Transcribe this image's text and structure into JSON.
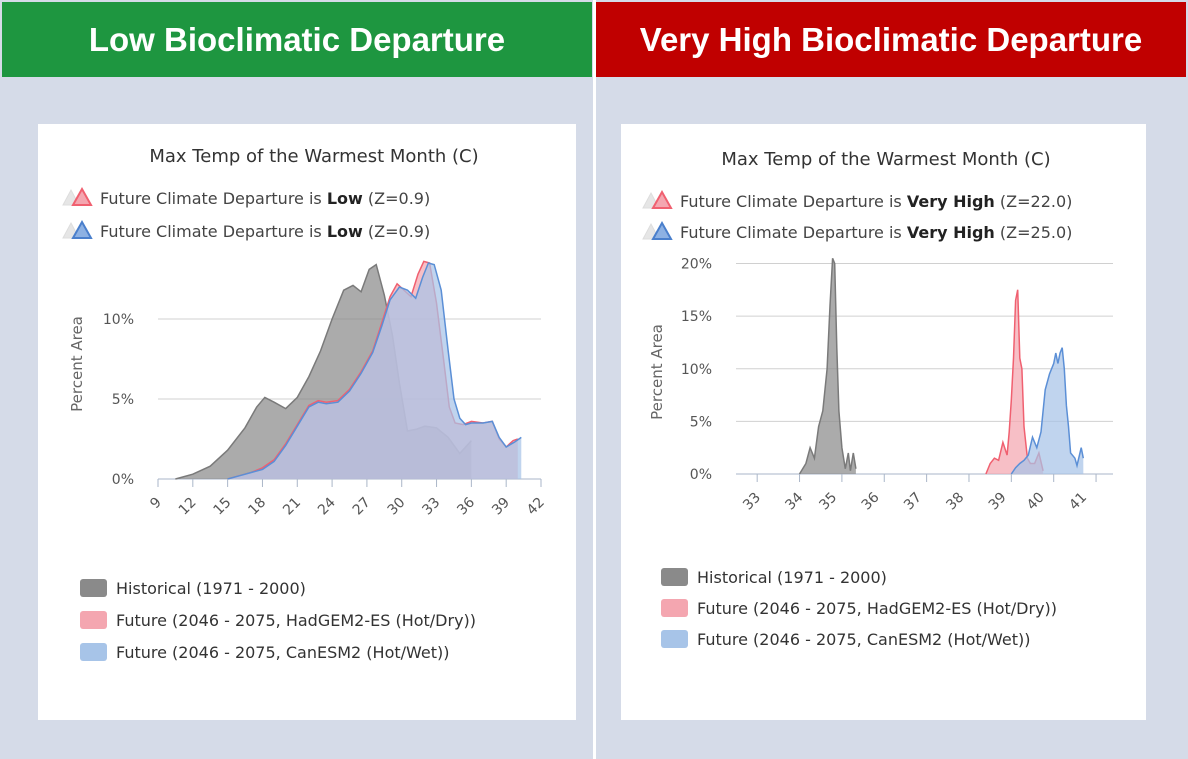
{
  "colors": {
    "low_header": "#1e9640",
    "high_header": "#c00000",
    "historical_fill": "#8a8a8a",
    "hadgem_fill": "#f4a6b0",
    "canesm_fill": "#a7c4e8",
    "hadgem_line": "#f06070",
    "canesm_line": "#5b8fd6",
    "grid": "#d0d0d0",
    "axis_text": "#555555"
  },
  "left": {
    "header": "Low Bioclimatic Departure",
    "header_icon": "none",
    "chart_data": {
      "type": "area",
      "title": "Max Temp of the Warmest Month (C)",
      "ylabel": "Percent Area",
      "xlabel": "",
      "xlim": [
        9,
        42
      ],
      "ylim": [
        0,
        14
      ],
      "grid": true,
      "x_ticks": [
        9,
        12,
        15,
        18,
        21,
        24,
        27,
        30,
        33,
        36,
        39,
        42
      ],
      "x_tick_labels": [
        "9",
        "12",
        "15",
        "18",
        "21",
        "24",
        "27",
        "30",
        "33",
        "36",
        "39",
        "42"
      ],
      "y_ticks": [
        0,
        5,
        10
      ],
      "y_tick_labels": [
        "0%",
        "5%",
        "10%"
      ],
      "departures": [
        {
          "prefix": "Future Climate Departure is ",
          "level": "Low",
          "suffix": " (Z=0.9)",
          "marker_color": "#f06070",
          "marker_fill": "#f4a6b0"
        },
        {
          "prefix": "Future Climate Departure is ",
          "level": "Low",
          "suffix": " (Z=0.9)",
          "marker_color": "#4a7fcc",
          "marker_fill": "#8db1e3"
        }
      ],
      "legend_position": "bottom-left",
      "legend": [
        {
          "label": "Historical (1971 - 2000)",
          "color": "#8a8a8a"
        },
        {
          "label": "Future (2046 - 2075, HadGEM2-ES (Hot/Dry))",
          "color": "#f4a6b0"
        },
        {
          "label": "Future (2046 - 2075, CanESM2 (Hot/Wet))",
          "color": "#a7c4e8"
        }
      ],
      "series": [
        {
          "key": "historical",
          "fill": "#8a8a8a",
          "line": "#7a7a7a",
          "x": [
            10.5,
            12,
            13.5,
            15,
            16.5,
            17.5,
            18.2,
            19,
            20,
            21,
            22,
            23,
            24,
            25,
            25.8,
            26.5,
            27.2,
            27.8,
            28.5,
            29.2,
            29.8,
            30.5,
            31.2,
            32,
            33,
            34,
            35,
            36
          ],
          "y": [
            0,
            0.3,
            0.8,
            1.8,
            3.2,
            4.5,
            5.1,
            4.8,
            4.4,
            5.1,
            6.4,
            8.0,
            10.0,
            11.8,
            12.1,
            11.7,
            13.1,
            13.4,
            11.5,
            9.0,
            6.0,
            3.0,
            3.1,
            3.3,
            3.2,
            2.6,
            1.6,
            2.4
          ]
        },
        {
          "key": "hadgem",
          "fill": "#f4a6b0",
          "line": "#f06070",
          "x": [
            15,
            16,
            17,
            18,
            19,
            20,
            21,
            22,
            22.8,
            23.5,
            24.5,
            25.5,
            26.5,
            27.5,
            28.3,
            29,
            29.6,
            30.2,
            30.8,
            31.4,
            31.9,
            32.4,
            33,
            33.6,
            34.1,
            34.6,
            35.3,
            36,
            37,
            37.8,
            38.4,
            39,
            39.6,
            40
          ],
          "y": [
            0,
            0.2,
            0.4,
            0.7,
            1.2,
            2.2,
            3.4,
            4.6,
            4.9,
            4.8,
            4.9,
            5.6,
            6.7,
            8.0,
            9.8,
            11.4,
            12.2,
            11.8,
            11.4,
            12.8,
            13.6,
            13.5,
            11.0,
            7.5,
            4.5,
            3.5,
            3.4,
            3.6,
            3.5,
            3.6,
            2.5,
            2.0,
            2.4,
            2.5
          ]
        },
        {
          "key": "canesm",
          "fill": "#a7c4e8",
          "line": "#5b8fd6",
          "x": [
            15,
            16,
            17,
            18,
            19,
            20,
            21,
            22,
            22.8,
            23.5,
            24.5,
            25.5,
            26.5,
            27.5,
            28.3,
            29,
            29.8,
            30.5,
            31.2,
            31.8,
            32.3,
            32.8,
            33.4,
            34,
            34.5,
            35,
            35.5,
            36,
            37,
            37.8,
            38.4,
            39,
            39.7,
            40.3
          ],
          "y": [
            0,
            0.2,
            0.4,
            0.6,
            1.1,
            2.1,
            3.3,
            4.5,
            4.8,
            4.7,
            4.8,
            5.5,
            6.6,
            7.9,
            9.6,
            11.2,
            12.0,
            11.8,
            11.3,
            12.6,
            13.5,
            13.4,
            11.8,
            8.0,
            5.0,
            3.8,
            3.4,
            3.5,
            3.5,
            3.6,
            2.6,
            2.0,
            2.3,
            2.6
          ]
        }
      ]
    }
  },
  "right": {
    "header": "Very High Bioclimatic Departure",
    "chart_data": {
      "type": "area",
      "title": "Max Temp of the Warmest Month (C)",
      "ylabel": "Percent Area",
      "xlabel": "",
      "xlim": [
        32.5,
        41.4
      ],
      "ylim": [
        0,
        21
      ],
      "grid": true,
      "x_ticks": [
        33,
        34,
        35,
        36,
        37,
        38,
        39,
        40,
        41
      ],
      "x_tick_labels": [
        "33",
        "34",
        "35",
        "36",
        "37",
        "38",
        "39",
        "40",
        "41"
      ],
      "x_tick_positions": [
        33,
        34,
        35,
        36,
        37,
        38,
        39,
        40,
        41
      ],
      "x_label_positions": [
        33,
        34,
        34.8,
        35.8,
        36.8,
        37.8,
        38.8,
        39.7,
        40.7
      ],
      "y_ticks": [
        0,
        5,
        10,
        15,
        20
      ],
      "y_tick_labels": [
        "0%",
        "5%",
        "10%",
        "15%",
        "20%"
      ],
      "departures": [
        {
          "prefix": "Future Climate Departure is ",
          "level": "Very High",
          "suffix": " (Z=22.0)",
          "marker_color": "#f06070",
          "marker_fill": "#f4a6b0"
        },
        {
          "prefix": "Future Climate Departure is ",
          "level": "Very High",
          "suffix": " (Z=25.0)",
          "marker_color": "#4a7fcc",
          "marker_fill": "#8db1e3"
        }
      ],
      "legend_position": "bottom-left",
      "legend": [
        {
          "label": "Historical (1971 - 2000)",
          "color": "#8a8a8a"
        },
        {
          "label": "Future (2046 - 2075, HadGEM2-ES (Hot/Dry))",
          "color": "#f4a6b0"
        },
        {
          "label": "Future (2046 - 2075, CanESM2 (Hot/Wet))",
          "color": "#a7c4e8"
        }
      ],
      "series": [
        {
          "key": "historical",
          "fill": "#8a8a8a",
          "line": "#7a7a7a",
          "x": [
            34.0,
            34.15,
            34.25,
            34.35,
            34.45,
            34.55,
            34.65,
            34.72,
            34.78,
            34.83,
            34.88,
            34.93,
            35.0,
            35.08,
            35.15,
            35.2,
            35.27,
            35.33
          ],
          "y": [
            0,
            1.0,
            2.5,
            1.5,
            4.5,
            6.0,
            10.0,
            16.0,
            20.5,
            20.0,
            12.0,
            6.0,
            2.5,
            0.5,
            2.0,
            0.3,
            2.0,
            0.5
          ]
        },
        {
          "key": "hadgem",
          "fill": "#f4a6b0",
          "line": "#f06070",
          "x": [
            38.4,
            38.5,
            38.6,
            38.7,
            38.8,
            38.9,
            38.95,
            39.0,
            39.05,
            39.1,
            39.15,
            39.2,
            39.25,
            39.3,
            39.38,
            39.45,
            39.55,
            39.65,
            39.75
          ],
          "y": [
            0,
            1.0,
            1.5,
            1.3,
            3.0,
            1.8,
            4.0,
            7.0,
            11.0,
            16.5,
            17.5,
            11.0,
            10.0,
            4.5,
            1.5,
            1.0,
            1.0,
            2.0,
            0.3
          ]
        },
        {
          "key": "canesm",
          "fill": "#a7c4e8",
          "line": "#5b8fd6",
          "x": [
            39.0,
            39.1,
            39.2,
            39.3,
            39.4,
            39.5,
            39.6,
            39.7,
            39.8,
            39.9,
            40.0,
            40.05,
            40.1,
            40.15,
            40.2,
            40.25,
            40.3,
            40.35,
            40.4,
            40.5,
            40.55,
            40.65,
            40.7
          ],
          "y": [
            0,
            0.6,
            1.0,
            1.3,
            1.8,
            3.5,
            2.5,
            4.0,
            8.0,
            9.5,
            10.5,
            11.5,
            10.5,
            11.5,
            12.0,
            10.0,
            6.5,
            4.5,
            2.0,
            1.5,
            0.8,
            2.5,
            1.5
          ]
        }
      ]
    }
  }
}
